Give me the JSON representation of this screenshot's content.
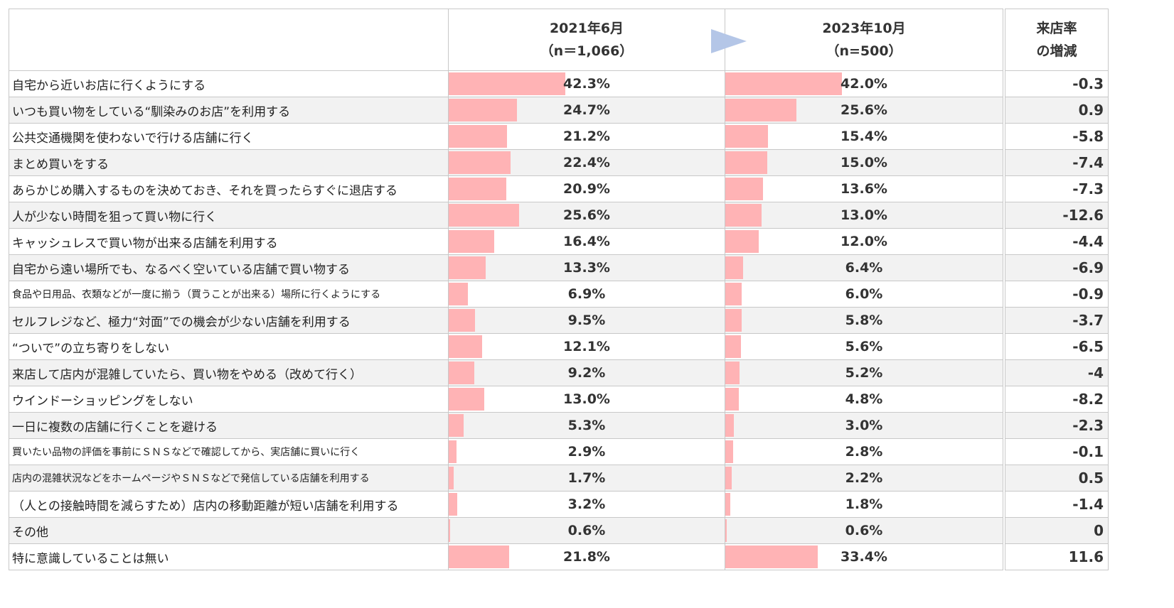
{
  "chart_data": {
    "type": "table",
    "columns": [
      {
        "line1": "2021年6月",
        "line2": "（n＝1,066）"
      },
      {
        "line1": "2023年10月",
        "line2": "（n=500）"
      },
      {
        "line1": "来店率",
        "line2": "の増減"
      }
    ],
    "rows": [
      {
        "label": "自宅から近いお店に行くようにする",
        "v2021": 42.3,
        "v2023": 42.0,
        "t2021": "42.3%",
        "t2023": "42.0%",
        "diff": "-0.3"
      },
      {
        "label": "いつも買い物をしている“馴染みのお店”を利用する",
        "v2021": 24.7,
        "v2023": 25.6,
        "t2021": "24.7%",
        "t2023": "25.6%",
        "diff": "0.9"
      },
      {
        "label": "公共交通機関を使わないで行ける店舗に行く",
        "v2021": 21.2,
        "v2023": 15.4,
        "t2021": "21.2%",
        "t2023": "15.4%",
        "diff": "-5.8"
      },
      {
        "label": "まとめ買いをする",
        "v2021": 22.4,
        "v2023": 15.0,
        "t2021": "22.4%",
        "t2023": "15.0%",
        "diff": "-7.4"
      },
      {
        "label": "あらかじめ購入するものを決めておき、それを買ったらすぐに退店する",
        "v2021": 20.9,
        "v2023": 13.6,
        "t2021": "20.9%",
        "t2023": "13.6%",
        "diff": "-7.3"
      },
      {
        "label": "人が少ない時間を狙って買い物に行く",
        "v2021": 25.6,
        "v2023": 13.0,
        "t2021": "25.6%",
        "t2023": "13.0%",
        "diff": "-12.6"
      },
      {
        "label": "キャッシュレスで買い物が出来る店舗を利用する",
        "v2021": 16.4,
        "v2023": 12.0,
        "t2021": "16.4%",
        "t2023": "12.0%",
        "diff": "-4.4"
      },
      {
        "label": "自宅から遠い場所でも、なるべく空いている店舗で買い物する",
        "v2021": 13.3,
        "v2023": 6.4,
        "t2021": "13.3%",
        "t2023": "6.4%",
        "diff": "-6.9"
      },
      {
        "label": "食品や日用品、衣類などが一度に揃う（買うことが出来る）場所に行くようにする",
        "v2021": 6.9,
        "v2023": 6.0,
        "t2021": "6.9%",
        "t2023": "6.0%",
        "diff": "-0.9"
      },
      {
        "label": "セルフレジなど、極力“対面”での機会が少ない店舗を利用する",
        "v2021": 9.5,
        "v2023": 5.8,
        "t2021": "9.5%",
        "t2023": "5.8%",
        "diff": "-3.7"
      },
      {
        "label": "“ついで”の立ち寄りをしない",
        "v2021": 12.1,
        "v2023": 5.6,
        "t2021": "12.1%",
        "t2023": "5.6%",
        "diff": "-6.5"
      },
      {
        "label": "来店して店内が混雑していたら、買い物をやめる（改めて行く）",
        "v2021": 9.2,
        "v2023": 5.2,
        "t2021": "9.2%",
        "t2023": "5.2%",
        "diff": "-4"
      },
      {
        "label": "ウインドーショッピングをしない",
        "v2021": 13.0,
        "v2023": 4.8,
        "t2021": "13.0%",
        "t2023": "4.8%",
        "diff": "-8.2"
      },
      {
        "label": "一日に複数の店舗に行くことを避ける",
        "v2021": 5.3,
        "v2023": 3.0,
        "t2021": "5.3%",
        "t2023": "3.0%",
        "diff": "-2.3"
      },
      {
        "label": "買いたい品物の評価を事前にＳＮＳなどで確認してから、実店舗に買いに行く",
        "v2021": 2.9,
        "v2023": 2.8,
        "t2021": "2.9%",
        "t2023": "2.8%",
        "diff": "-0.1"
      },
      {
        "label": "店内の混雑状況などをホームページやＳＮＳなどで発信している店舗を利用する",
        "v2021": 1.7,
        "v2023": 2.2,
        "t2021": "1.7%",
        "t2023": "2.2%",
        "diff": "0.5"
      },
      {
        "label": "（人との接触時間を減らすため）店内の移動距離が短い店舗を利用する",
        "v2021": 3.2,
        "v2023": 1.8,
        "t2021": "3.2%",
        "t2023": "1.8%",
        "diff": "-1.4"
      },
      {
        "label": "その他",
        "v2021": 0.6,
        "v2023": 0.6,
        "t2021": "0.6%",
        "t2023": "0.6%",
        "diff": "0"
      },
      {
        "label": "特に意識していることは無い",
        "v2021": 21.8,
        "v2023": 33.4,
        "t2021": "21.8%",
        "t2023": "33.4%",
        "diff": "11.6"
      }
    ],
    "value_max": 100,
    "colors": {
      "bar": "#ffb3b5",
      "arrow": "#b4c6e7"
    }
  }
}
